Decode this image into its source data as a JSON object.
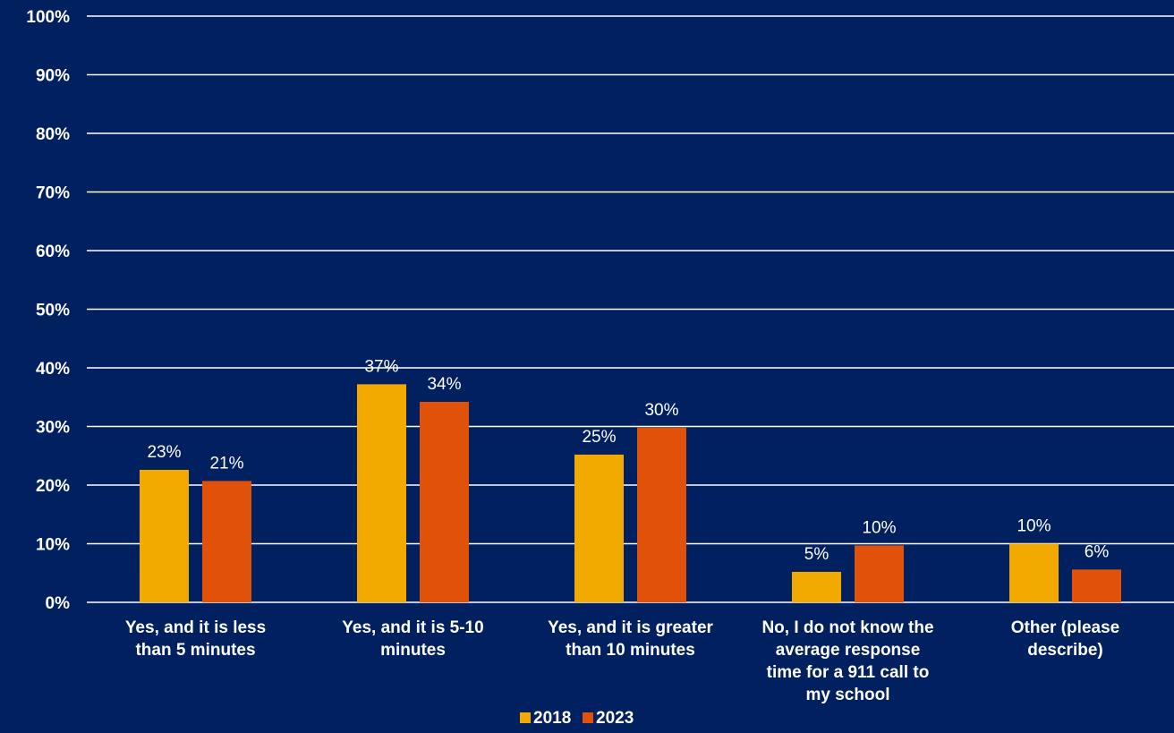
{
  "chart_data": {
    "type": "bar",
    "categories": [
      "Yes, and it is less than 5 minutes",
      "Yes, and it is 5-10 minutes",
      "Yes, and it is greater than 10 minutes",
      "No, I do not know the average response time for a 911 call to my school",
      "Other (please describe)"
    ],
    "category_lines": [
      [
        "Yes, and it is less",
        "than 5 minutes"
      ],
      [
        "Yes, and it is 5-10",
        "minutes"
      ],
      [
        "Yes, and it is greater",
        "than 10 minutes"
      ],
      [
        "No, I do not know the",
        "average response",
        "time for a 911 call to",
        "my school"
      ],
      [
        "Other (please",
        "describe)"
      ]
    ],
    "series": [
      {
        "name": "2018",
        "color": "#F2A900",
        "values": [
          22.6,
          37.2,
          25.2,
          5.2,
          10.0
        ],
        "labels": [
          "23%",
          "37%",
          "25%",
          "5%",
          "10%"
        ]
      },
      {
        "name": "2023",
        "color": "#E0520A",
        "values": [
          20.7,
          34.2,
          29.8,
          9.7,
          5.6
        ],
        "labels": [
          "21%",
          "34%",
          "30%",
          "10%",
          "6%"
        ]
      }
    ],
    "yticks": [
      "0%",
      "10%",
      "20%",
      "30%",
      "40%",
      "50%",
      "60%",
      "70%",
      "80%",
      "90%",
      "100%"
    ],
    "ylim": [
      0,
      100
    ],
    "grid": true,
    "legend_position": "bottom",
    "background": "#002060",
    "gridline_color": "#FFFFFF"
  }
}
